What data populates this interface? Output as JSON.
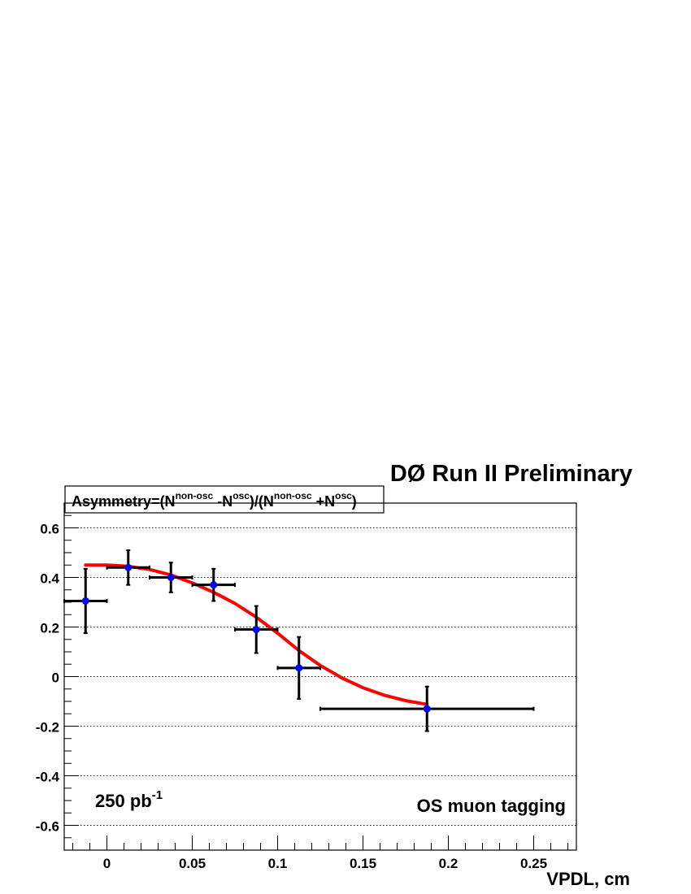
{
  "chart_data": {
    "type": "scatter",
    "header": "DØ Run II Preliminary",
    "title_parts": {
      "t1": "Asymmetry=(N",
      "s1": "non-osc",
      "t2": " -N",
      "s2": "osc",
      "t3": ")/(N",
      "s3": "non-osc",
      "t4": " +N",
      "s4": "osc",
      "t5": ")"
    },
    "xlabel": "VPDL, cm",
    "xlim": [
      -0.025,
      0.275
    ],
    "ylim": [
      -0.7,
      0.7
    ],
    "grid": "horizontal-dotted",
    "x_ticks": [
      {
        "v": 0,
        "label": "0"
      },
      {
        "v": 0.05,
        "label": "0.05"
      },
      {
        "v": 0.1,
        "label": "0.1"
      },
      {
        "v": 0.15,
        "label": "0.15"
      },
      {
        "v": 0.2,
        "label": "0.2"
      },
      {
        "v": 0.25,
        "label": "0.25"
      }
    ],
    "y_ticks": [
      {
        "v": 0.6,
        "label": "0.6"
      },
      {
        "v": 0.4,
        "label": "0.4"
      },
      {
        "v": 0.2,
        "label": "0.2"
      },
      {
        "v": 0,
        "label": "0"
      },
      {
        "v": -0.2,
        "label": "-0.2"
      },
      {
        "v": -0.4,
        "label": "-0.4"
      },
      {
        "v": -0.6,
        "label": "-0.6"
      }
    ],
    "annotations": {
      "lumi": "250 pb",
      "lumi_sup": "-1",
      "tagging": "OS muon tagging"
    },
    "points": [
      {
        "x": -0.0125,
        "y": 0.305,
        "xerr": 0.0125,
        "yerr": 0.13
      },
      {
        "x": 0.0125,
        "y": 0.44,
        "xerr": 0.0125,
        "yerr": 0.07
      },
      {
        "x": 0.0375,
        "y": 0.4,
        "xerr": 0.0125,
        "yerr": 0.06
      },
      {
        "x": 0.0625,
        "y": 0.37,
        "xerr": 0.0125,
        "yerr": 0.065
      },
      {
        "x": 0.0875,
        "y": 0.19,
        "xerr": 0.0125,
        "yerr": 0.095
      },
      {
        "x": 0.1125,
        "y": 0.035,
        "xerr": 0.0125,
        "yerr": 0.125
      },
      {
        "x": 0.1875,
        "y": -0.13,
        "xerr": 0.0625,
        "yerr": 0.09
      }
    ],
    "fit_curve": [
      {
        "x": -0.0125,
        "y": 0.45
      },
      {
        "x": 0.0,
        "y": 0.45
      },
      {
        "x": 0.0125,
        "y": 0.445
      },
      {
        "x": 0.025,
        "y": 0.432
      },
      {
        "x": 0.0375,
        "y": 0.41
      },
      {
        "x": 0.05,
        "y": 0.378
      },
      {
        "x": 0.0625,
        "y": 0.34
      },
      {
        "x": 0.075,
        "y": 0.295
      },
      {
        "x": 0.0875,
        "y": 0.24
      },
      {
        "x": 0.1,
        "y": 0.175
      },
      {
        "x": 0.1125,
        "y": 0.105
      },
      {
        "x": 0.125,
        "y": 0.045
      },
      {
        "x": 0.1375,
        "y": -0.005
      },
      {
        "x": 0.15,
        "y": -0.045
      },
      {
        "x": 0.1625,
        "y": -0.075
      },
      {
        "x": 0.175,
        "y": -0.097
      },
      {
        "x": 0.1875,
        "y": -0.112
      }
    ],
    "colors": {
      "points": "#0000ff",
      "fit": "#ff0000",
      "errorbars": "#000000"
    }
  }
}
